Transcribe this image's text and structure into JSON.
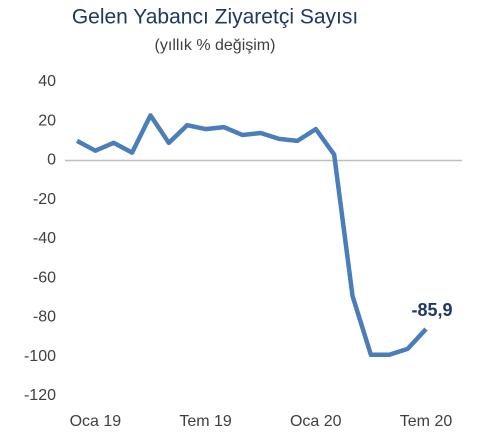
{
  "chart_data": {
    "type": "line",
    "title": "Gelen Yabancı Ziyaretçi Sayısı",
    "subtitle": "(yıllık % değişim)",
    "categories": [
      null,
      "Oca 19",
      null,
      null,
      null,
      null,
      null,
      "Tem 19",
      null,
      null,
      null,
      null,
      null,
      "Oca 20",
      null,
      null,
      null,
      null,
      null,
      "Tem 20"
    ],
    "series": [
      {
        "name": "Gelen Yabancı Ziyaretçi Sayısı",
        "color": "#4a7ebb",
        "values": [
          10,
          5,
          9,
          4,
          23,
          9,
          18,
          16,
          17,
          13,
          14,
          11,
          10,
          16,
          3,
          -69,
          -99,
          -99,
          -96,
          -85.9
        ],
        "value_labels": [
          null,
          null,
          null,
          null,
          null,
          null,
          null,
          null,
          null,
          null,
          null,
          null,
          null,
          null,
          null,
          null,
          null,
          null,
          null,
          "-85,9"
        ]
      }
    ],
    "ylim": [
      -120,
      40
    ],
    "yticks": [
      40,
      20,
      0,
      -20,
      -40,
      -60,
      -80,
      -100,
      -120
    ],
    "zero_line": true
  }
}
